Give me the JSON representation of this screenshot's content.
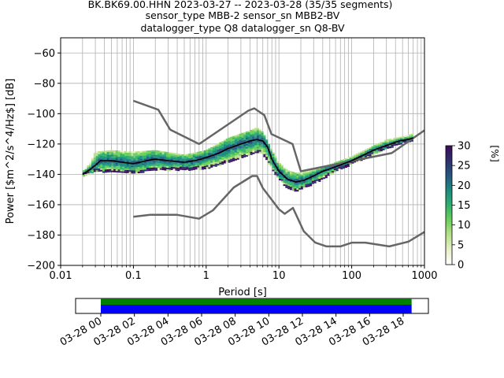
{
  "header": {
    "title_lines": [
      "BK.BK69.00.HHN   2023-03-27 -- 2023-03-28  (35/35 segments)",
      "sensor_type MBB-2 sensor_sn MBB2-BV",
      "datalogger_type Q8 datalogger_sn Q8-BV"
    ]
  },
  "colors": {
    "grid": "#b0b0b0",
    "mean_line": "#000000",
    "noise_model": "#666666",
    "bar_top": "#008000",
    "bar_bottom": "#0000ff",
    "colormap": [
      "#ffffff",
      "#e8f0c8",
      "#b8e08a",
      "#6ccf5a",
      "#2fb06f",
      "#1d8a7f",
      "#24577f",
      "#2f2f6b",
      "#3d0a5a"
    ]
  },
  "chart_data": [
    {
      "type": "ppsd",
      "xlabel": "Period [s]",
      "ylabel": "Power [$m^2/s^4/Hz$] [dB]",
      "xscale": "log",
      "xlim": [
        0.01,
        1000
      ],
      "ylim": [
        -200,
        -50
      ],
      "xticks": [
        {
          "value": 0.01,
          "label": "0.01"
        },
        {
          "value": 0.1,
          "label": "0.1"
        },
        {
          "value": 1,
          "label": "1"
        },
        {
          "value": 10,
          "label": "10"
        },
        {
          "value": 100,
          "label": "100"
        },
        {
          "value": 1000,
          "label": "1000"
        }
      ],
      "yticks": [
        {
          "value": -60,
          "label": "−60"
        },
        {
          "value": -80,
          "label": "−80"
        },
        {
          "value": -100,
          "label": "−100"
        },
        {
          "value": -120,
          "label": "−120"
        },
        {
          "value": -140,
          "label": "−140"
        },
        {
          "value": -160,
          "label": "−160"
        },
        {
          "value": -180,
          "label": "−180"
        },
        {
          "value": -200,
          "label": "−200"
        }
      ],
      "grid": true,
      "mean_curve": {
        "x": [
          0.02,
          0.025,
          0.03,
          0.035,
          0.05,
          0.07,
          0.1,
          0.15,
          0.2,
          0.3,
          0.5,
          0.7,
          1,
          1.5,
          2,
          3,
          4,
          5,
          6,
          7,
          8,
          10,
          13,
          17,
          22,
          30,
          40,
          60,
          100,
          150,
          200,
          300,
          450,
          600,
          700
        ],
        "y": [
          -140,
          -137,
          -134,
          -131,
          -131,
          -132,
          -133,
          -131,
          -130,
          -131,
          -132,
          -131,
          -129,
          -126,
          -123,
          -120,
          -118,
          -117,
          -118,
          -122,
          -130,
          -138,
          -143,
          -145,
          -144,
          -141,
          -138,
          -135,
          -131,
          -127,
          -124,
          -121,
          -118,
          -117,
          -116
        ]
      },
      "density_band": {
        "x": [
          0.02,
          0.025,
          0.03,
          0.05,
          0.1,
          0.2,
          0.5,
          1,
          2,
          3,
          4,
          5,
          6,
          8,
          10,
          13,
          17,
          25,
          40,
          60,
          100,
          200,
          300,
          500,
          700
        ],
        "upper": [
          -138,
          -133,
          -125,
          -124,
          -125,
          -124,
          -127,
          -124,
          -116,
          -113,
          -111,
          -109,
          -112,
          -124,
          -132,
          -137,
          -139,
          -138,
          -135,
          -132,
          -128,
          -121,
          -117,
          -115,
          -113
        ],
        "lower": [
          -142,
          -139,
          -138,
          -138,
          -139,
          -137,
          -137,
          -136,
          -132,
          -129,
          -127,
          -125,
          -126,
          -136,
          -143,
          -149,
          -151,
          -148,
          -143,
          -138,
          -133,
          -127,
          -123,
          -119,
          -118
        ]
      },
      "noise_model_high": {
        "x": [
          0.1,
          0.22,
          0.32,
          0.8,
          3.8,
          4.6,
          6.3,
          7.9,
          15.4,
          20,
          354.8,
          1000
        ],
        "y": [
          -91.5,
          -97.4,
          -110.5,
          -120,
          -98,
          -96.5,
          -101,
          -113.5,
          -120,
          -138,
          -126,
          -111
        ]
      },
      "noise_model_low": {
        "x": [
          0.1,
          0.17,
          0.4,
          0.8,
          1.24,
          2.4,
          4.3,
          5,
          6,
          10,
          12,
          15.6,
          21.9,
          31.6,
          45,
          70,
          101,
          154,
          328,
          600,
          1000
        ],
        "y": [
          -168,
          -166.7,
          -166.7,
          -169.2,
          -163.7,
          -148.6,
          -141.1,
          -141.1,
          -149,
          -163,
          -166,
          -162.1,
          -177.5,
          -185,
          -187.5,
          -187.5,
          -185,
          -185,
          -187.5,
          -184.4,
          -178
        ]
      },
      "colorbar": {
        "label": "[%]",
        "range": [
          0,
          30
        ],
        "ticks": [
          {
            "value": 0,
            "label": "0"
          },
          {
            "value": 5,
            "label": "5"
          },
          {
            "value": 10,
            "label": "10"
          },
          {
            "value": 15,
            "label": "15"
          },
          {
            "value": 20,
            "label": "20"
          },
          {
            "value": 25,
            "label": "25"
          },
          {
            "value": 30,
            "label": "30"
          }
        ]
      }
    },
    {
      "type": "timeline",
      "tick_labels": [
        "03-28 00",
        "03-28 02",
        "03-28 04",
        "03-28 06",
        "03-28 08",
        "03-28 10",
        "03-28 12",
        "03-28 14",
        "03-28 16",
        "03-28 18"
      ],
      "tick_hours": [
        0,
        2,
        4,
        6,
        8,
        10,
        12,
        14,
        16,
        18
      ],
      "xlim_hours": [
        -1.5,
        19.5
      ],
      "coverage_hours": [
        0,
        18.5
      ]
    }
  ]
}
